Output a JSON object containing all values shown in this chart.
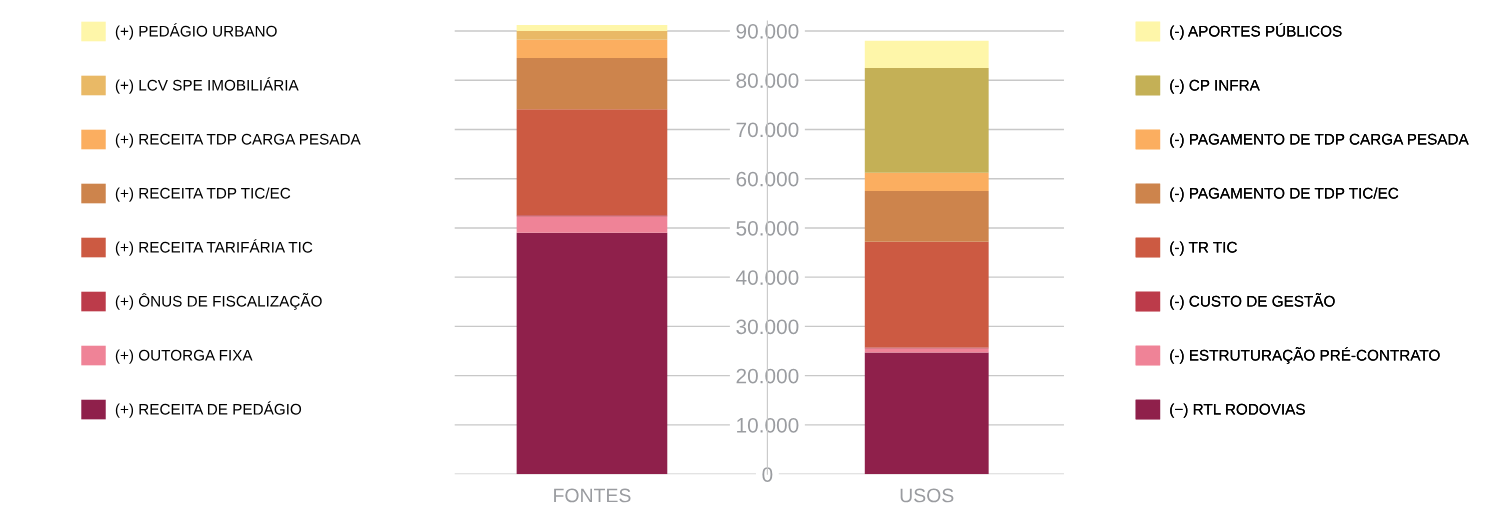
{
  "chart_data": {
    "type": "bar",
    "stacked": true,
    "categories": [
      "FONTES",
      "USOS"
    ],
    "series": [
      {
        "name": "(+) RECEITA DE PEDÁGIO",
        "color": "#8f204b",
        "values": [
          49000,
          null
        ]
      },
      {
        "name": "(+) OUTORGA FIXA",
        "color": "#ef8397",
        "values": [
          3300,
          null
        ]
      },
      {
        "name": "(+) ÔNUS DE FISCALIZAÇÃO",
        "color": "#bc3b4a",
        "values": [
          300,
          null
        ]
      },
      {
        "name": "(+) RECEITA TARIFÁRIA TIC",
        "color": "#cc5a42",
        "values": [
          21500,
          null
        ]
      },
      {
        "name": "(+) RECEITA TDP TIC/EC",
        "color": "#cd844c",
        "values": [
          10400,
          null
        ]
      },
      {
        "name": "(+) RECEITA TDP CARGA PESADA",
        "color": "#fbae60",
        "values": [
          3700,
          null
        ]
      },
      {
        "name": "(+) LCV SPE IMOBILIÁRIA",
        "color": "#e9b966",
        "values": [
          1800,
          null
        ]
      },
      {
        "name": "(+) PEDÁGIO URBANO",
        "color": "#fef6a9",
        "values": [
          1200,
          null
        ]
      },
      {
        "name": "(−) RTL RODOVIAS",
        "color": "#8f204b",
        "values": [
          null,
          24700
        ]
      },
      {
        "name": "(-) ESTRUTURAÇÃO PRÉ-CONTRATO",
        "color": "#ef8397",
        "values": [
          null,
          800
        ]
      },
      {
        "name": "(-) CUSTO DE GESTÃO",
        "color": "#bc3b4a",
        "values": [
          null,
          200
        ]
      },
      {
        "name": "(-) TR TIC",
        "color": "#cc5a42",
        "values": [
          null,
          21500
        ]
      },
      {
        "name": "(-) PAGAMENTO DE TDP TIC/EC",
        "color": "#cd844c",
        "values": [
          null,
          10300
        ]
      },
      {
        "name": "(-) PAGAMENTO DE TDP CARGA PESADA",
        "color": "#fbae60",
        "values": [
          null,
          3700
        ]
      },
      {
        "name": "(-) CP INFRA",
        "color": "#c4b056",
        "values": [
          null,
          21300
        ]
      },
      {
        "name": "(-) APORTES PÚBLICOS",
        "color": "#fef6a9",
        "values": [
          null,
          5500
        ]
      }
    ],
    "ylim": [
      0,
      92000
    ],
    "yticks": [
      {
        "value": 0,
        "label": "0"
      },
      {
        "value": 10000,
        "label": "10.000"
      },
      {
        "value": 20000,
        "label": "20.000"
      },
      {
        "value": 30000,
        "label": "30.000"
      },
      {
        "value": 40000,
        "label": "40.000"
      },
      {
        "value": 50000,
        "label": "50.000"
      },
      {
        "value": 60000,
        "label": "60.000"
      },
      {
        "value": 70000,
        "label": "70.000"
      },
      {
        "value": 80000,
        "label": "80.000"
      },
      {
        "value": 90000,
        "label": "90.000"
      }
    ],
    "grid": "y",
    "legend": "left"
  }
}
